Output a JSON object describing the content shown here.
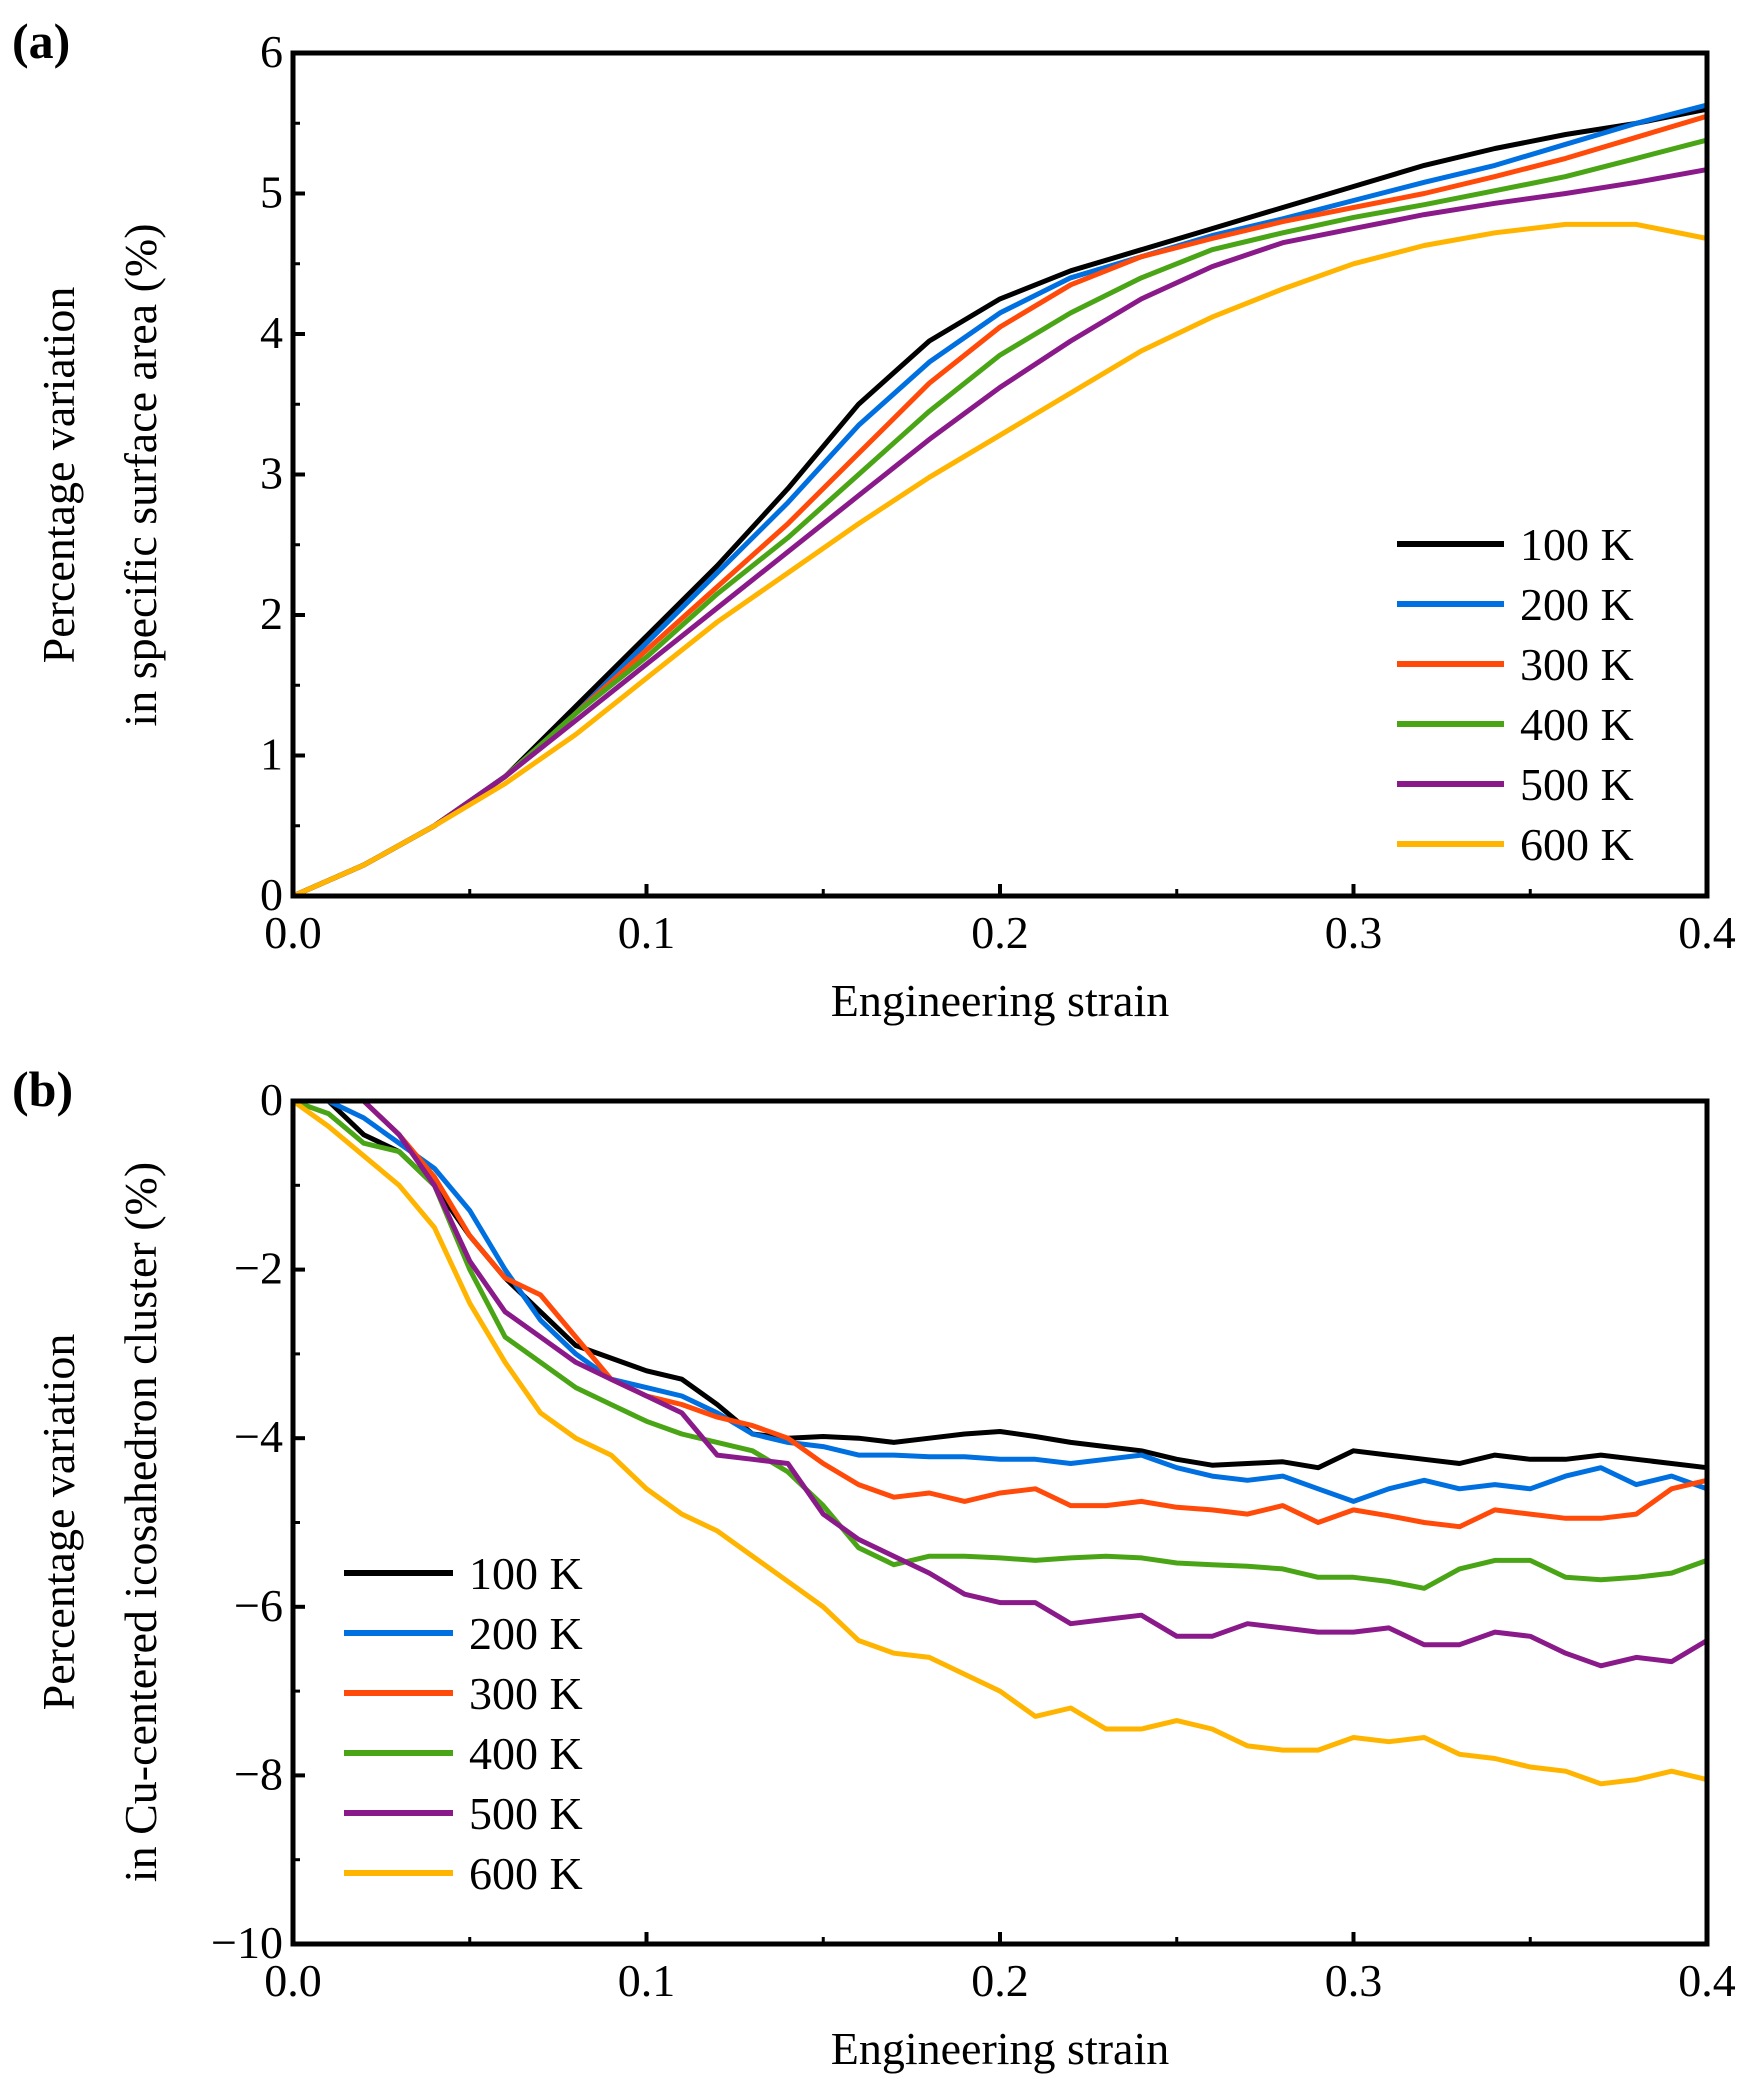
{
  "chart_data": [
    {
      "panel_label": "(a)",
      "type": "line",
      "title": "",
      "xlabel": "Engineering strain",
      "ylabel": [
        "Percentage variation",
        "in specific surface area (%)"
      ],
      "xlim": [
        0,
        0.4
      ],
      "ylim": [
        0,
        6
      ],
      "xticks": [
        "0.0",
        "0.1",
        "0.2",
        "0.3",
        "0.4"
      ],
      "yticks": [
        "0",
        "1",
        "2",
        "3",
        "4",
        "5",
        "6"
      ],
      "grid": false,
      "legend_position": "bottom-right",
      "x": [
        0,
        0.02,
        0.04,
        0.06,
        0.08,
        0.1,
        0.12,
        0.14,
        0.16,
        0.18,
        0.2,
        0.22,
        0.24,
        0.26,
        0.28,
        0.3,
        0.32,
        0.34,
        0.36,
        0.38,
        0.4
      ],
      "series": [
        {
          "name": "100 K",
          "color": "#000000",
          "values": [
            0,
            0.22,
            0.5,
            0.85,
            1.35,
            1.85,
            2.35,
            2.9,
            3.5,
            3.95,
            4.25,
            4.45,
            4.6,
            4.75,
            4.9,
            5.05,
            5.2,
            5.32,
            5.42,
            5.5,
            5.6
          ]
        },
        {
          "name": "200 K",
          "color": "#0070e0",
          "values": [
            0,
            0.22,
            0.5,
            0.85,
            1.3,
            1.8,
            2.3,
            2.8,
            3.35,
            3.8,
            4.15,
            4.4,
            4.55,
            4.7,
            4.82,
            4.95,
            5.08,
            5.2,
            5.35,
            5.5,
            5.63
          ]
        },
        {
          "name": "300 K",
          "color": "#ff4a0a",
          "values": [
            0,
            0.22,
            0.5,
            0.85,
            1.3,
            1.75,
            2.2,
            2.65,
            3.15,
            3.65,
            4.05,
            4.35,
            4.55,
            4.68,
            4.8,
            4.9,
            5.0,
            5.12,
            5.25,
            5.4,
            5.55
          ]
        },
        {
          "name": "400 K",
          "color": "#4aa516",
          "values": [
            0,
            0.22,
            0.5,
            0.85,
            1.3,
            1.7,
            2.15,
            2.55,
            3.0,
            3.45,
            3.85,
            4.15,
            4.4,
            4.6,
            4.72,
            4.83,
            4.92,
            5.02,
            5.12,
            5.25,
            5.38
          ]
        },
        {
          "name": "500 K",
          "color": "#8a1a8a",
          "values": [
            0,
            0.22,
            0.5,
            0.85,
            1.25,
            1.65,
            2.05,
            2.45,
            2.85,
            3.25,
            3.62,
            3.95,
            4.25,
            4.48,
            4.65,
            4.75,
            4.85,
            4.93,
            5.0,
            5.08,
            5.17
          ]
        },
        {
          "name": "600 K",
          "color": "#ffb400",
          "values": [
            0,
            0.22,
            0.5,
            0.8,
            1.15,
            1.55,
            1.95,
            2.3,
            2.65,
            2.98,
            3.28,
            3.58,
            3.88,
            4.12,
            4.32,
            4.5,
            4.63,
            4.72,
            4.78,
            4.78,
            4.68
          ]
        }
      ]
    },
    {
      "panel_label": "(b)",
      "type": "line",
      "title": "",
      "xlabel": "Engineering strain",
      "ylabel": [
        "Percentage variation",
        "in Cu-centered icosahedron cluster (%)"
      ],
      "xlim": [
        0,
        0.4
      ],
      "ylim": [
        -10,
        0
      ],
      "xticks": [
        "0.0",
        "0.1",
        "0.2",
        "0.3",
        "0.4"
      ],
      "yticks": [
        "−10",
        "−8",
        "−6",
        "−4",
        "−2",
        "0"
      ],
      "ytick_values": [
        -10,
        -8,
        -6,
        -4,
        -2,
        0
      ],
      "grid": false,
      "legend_position": "bottom-left",
      "x": [
        0,
        0.01,
        0.02,
        0.03,
        0.04,
        0.05,
        0.06,
        0.07,
        0.08,
        0.09,
        0.1,
        0.11,
        0.12,
        0.13,
        0.14,
        0.15,
        0.16,
        0.17,
        0.18,
        0.19,
        0.2,
        0.21,
        0.22,
        0.23,
        0.24,
        0.25,
        0.26,
        0.27,
        0.28,
        0.29,
        0.3,
        0.31,
        0.32,
        0.33,
        0.34,
        0.35,
        0.36,
        0.37,
        0.38,
        0.39,
        0.4
      ],
      "series": [
        {
          "name": "100 K",
          "color": "#000000",
          "values": [
            0,
            0,
            -0.4,
            -0.6,
            -1.0,
            -1.6,
            -2.1,
            -2.5,
            -2.9,
            -3.05,
            -3.2,
            -3.3,
            -3.6,
            -3.95,
            -4.0,
            -3.98,
            -4.0,
            -4.05,
            -4.0,
            -3.95,
            -3.92,
            -3.98,
            -4.05,
            -4.1,
            -4.15,
            -4.25,
            -4.32,
            -4.3,
            -4.28,
            -4.35,
            -4.15,
            -4.2,
            -4.25,
            -4.3,
            -4.2,
            -4.25,
            -4.25,
            -4.2,
            -4.25,
            -4.3,
            -4.35
          ]
        },
        {
          "name": "200 K",
          "color": "#0070e0",
          "values": [
            0,
            0,
            -0.2,
            -0.5,
            -0.8,
            -1.3,
            -2.0,
            -2.6,
            -3.0,
            -3.3,
            -3.4,
            -3.5,
            -3.7,
            -3.95,
            -4.05,
            -4.1,
            -4.2,
            -4.2,
            -4.22,
            -4.22,
            -4.25,
            -4.25,
            -4.3,
            -4.25,
            -4.2,
            -4.35,
            -4.45,
            -4.5,
            -4.45,
            -4.6,
            -4.75,
            -4.6,
            -4.5,
            -4.6,
            -4.55,
            -4.6,
            -4.45,
            -4.35,
            -4.55,
            -4.45,
            -4.6
          ]
        },
        {
          "name": "300 K",
          "color": "#ff4a0a",
          "values": [
            0,
            0,
            0,
            -0.4,
            -0.9,
            -1.6,
            -2.1,
            -2.3,
            -2.8,
            -3.3,
            -3.5,
            -3.6,
            -3.75,
            -3.85,
            -4.0,
            -4.3,
            -4.55,
            -4.7,
            -4.65,
            -4.75,
            -4.65,
            -4.6,
            -4.8,
            -4.8,
            -4.75,
            -4.82,
            -4.85,
            -4.9,
            -4.8,
            -5.0,
            -4.85,
            -4.92,
            -5.0,
            -5.05,
            -4.85,
            -4.9,
            -4.95,
            -4.95,
            -4.9,
            -4.6,
            -4.5
          ]
        },
        {
          "name": "400 K",
          "color": "#4aa516",
          "values": [
            0,
            -0.15,
            -0.5,
            -0.6,
            -1.0,
            -2.0,
            -2.8,
            -3.1,
            -3.4,
            -3.6,
            -3.8,
            -3.95,
            -4.05,
            -4.15,
            -4.4,
            -4.8,
            -5.3,
            -5.5,
            -5.4,
            -5.4,
            -5.42,
            -5.45,
            -5.42,
            -5.4,
            -5.42,
            -5.48,
            -5.5,
            -5.52,
            -5.55,
            -5.65,
            -5.65,
            -5.7,
            -5.78,
            -5.55,
            -5.45,
            -5.45,
            -5.65,
            -5.68,
            -5.65,
            -5.6,
            -5.45
          ]
        },
        {
          "name": "500 K",
          "color": "#8a1a8a",
          "values": [
            0,
            0,
            0,
            -0.4,
            -1.0,
            -1.9,
            -2.5,
            -2.8,
            -3.1,
            -3.3,
            -3.5,
            -3.7,
            -4.2,
            -4.25,
            -4.3,
            -4.9,
            -5.2,
            -5.4,
            -5.6,
            -5.85,
            -5.95,
            -5.95,
            -6.2,
            -6.15,
            -6.1,
            -6.35,
            -6.35,
            -6.2,
            -6.25,
            -6.3,
            -6.3,
            -6.25,
            -6.45,
            -6.45,
            -6.3,
            -6.35,
            -6.55,
            -6.7,
            -6.6,
            -6.65,
            -6.4
          ]
        },
        {
          "name": "600 K",
          "color": "#ffb400",
          "values": [
            0,
            -0.3,
            -0.65,
            -1.0,
            -1.5,
            -2.4,
            -3.1,
            -3.7,
            -4.0,
            -4.2,
            -4.6,
            -4.9,
            -5.1,
            -5.4,
            -5.7,
            -6.0,
            -6.4,
            -6.55,
            -6.6,
            -6.8,
            -7.0,
            -7.3,
            -7.2,
            -7.45,
            -7.45,
            -7.35,
            -7.45,
            -7.65,
            -7.7,
            -7.7,
            -7.55,
            -7.6,
            -7.55,
            -7.75,
            -7.8,
            -7.9,
            -7.95,
            -8.1,
            -8.05,
            -7.95,
            -8.05
          ]
        }
      ]
    }
  ]
}
